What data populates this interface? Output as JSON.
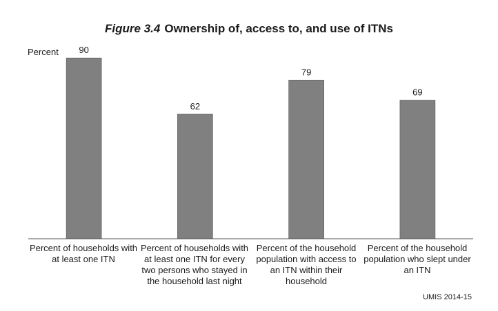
{
  "chart_data": {
    "type": "bar",
    "title_prefix": "Figure 3.4",
    "title": "Ownership of, access to, and use of ITNs",
    "ylabel": "Percent",
    "xlabel": "",
    "categories": [
      "Percent of households with at least one ITN",
      "Percent of households with at least one ITN for every two persons who stayed in the household last night",
      "Percent of the household population with access to an ITN within their household",
      "Percent of the household population who slept under an ITN"
    ],
    "values": [
      90,
      62,
      79,
      69
    ],
    "ylim": [
      0,
      100
    ],
    "grid": false,
    "bar_color": "#808080",
    "source": "UMIS 2014-15"
  }
}
